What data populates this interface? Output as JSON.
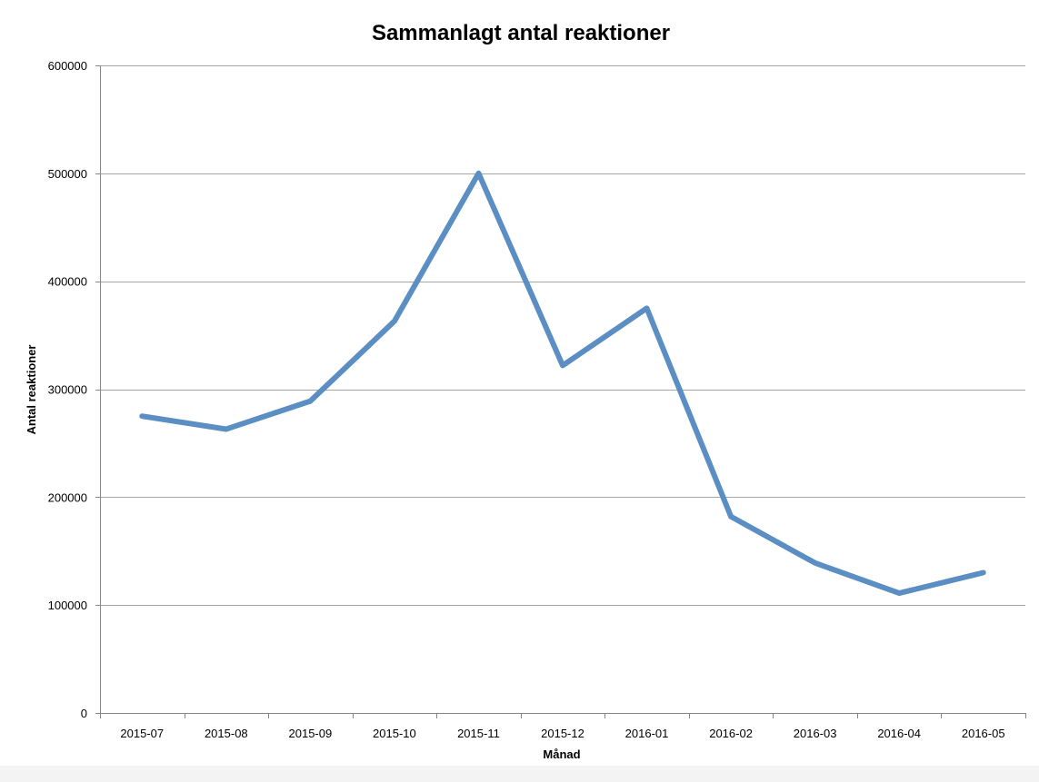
{
  "chart_data": {
    "type": "line",
    "title": "Sammanlagt antal reaktioner",
    "xlabel": "Månad",
    "ylabel": "Antal reaktioner",
    "categories": [
      "2015-07",
      "2015-08",
      "2015-09",
      "2015-10",
      "2015-11",
      "2015-12",
      "2016-01",
      "2016-02",
      "2016-03",
      "2016-04",
      "2016-05"
    ],
    "series": [
      {
        "values": [
          275000,
          263000,
          289000,
          363000,
          500000,
          322000,
          375000,
          182000,
          139000,
          111000,
          130000
        ]
      }
    ],
    "ylim": [
      0,
      600000
    ],
    "yticks": [
      "0",
      "100000",
      "200000",
      "300000",
      "400000",
      "500000",
      "600000"
    ],
    "grid": true,
    "legend": "none",
    "colors": {
      "line": "#5b8ec3",
      "grid": "#a6a6a6",
      "axis": "#878787"
    }
  }
}
